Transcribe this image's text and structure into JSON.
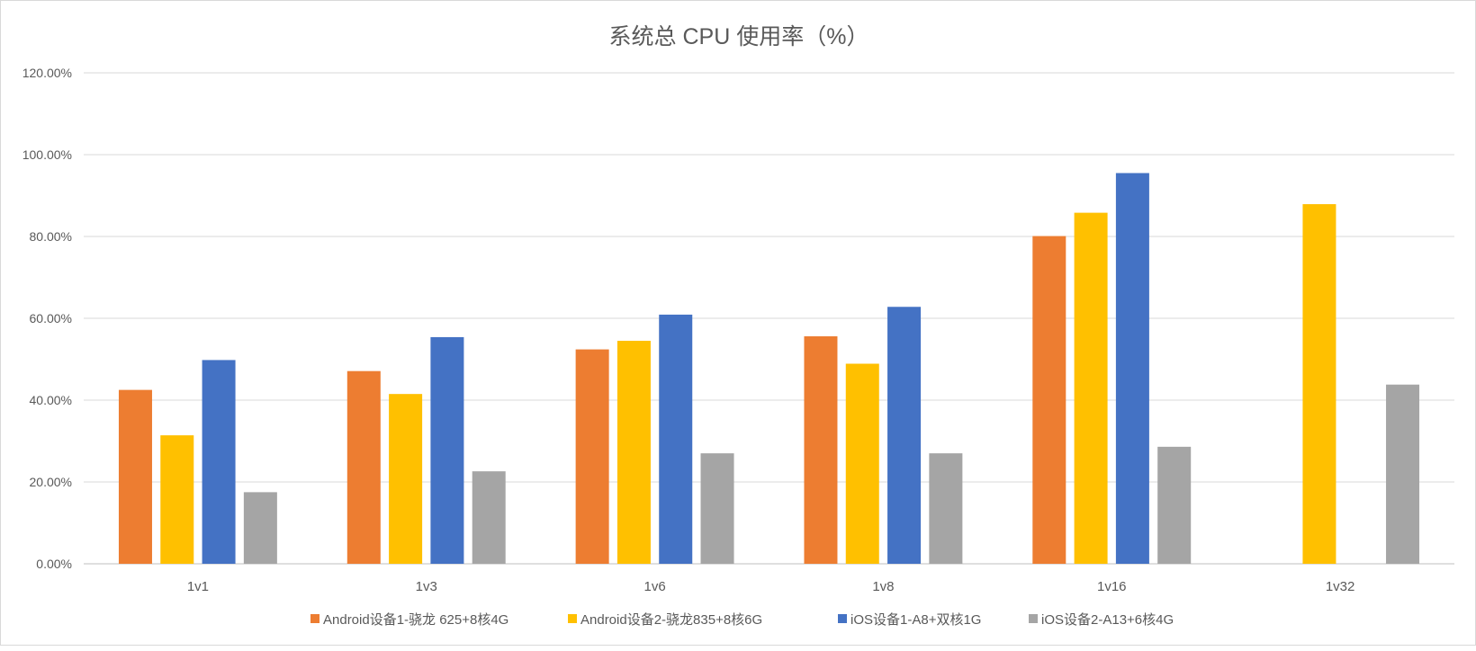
{
  "chart_data": {
    "type": "bar",
    "title": "系统总 CPU 使用率（%）",
    "xlabel": "",
    "ylabel": "",
    "ylim": [
      0,
      120
    ],
    "yticks": [
      0,
      20,
      40,
      60,
      80,
      100,
      120
    ],
    "ytick_labels": [
      "0.00%",
      "20.00%",
      "40.00%",
      "60.00%",
      "80.00%",
      "100.00%",
      "120.00%"
    ],
    "grid": true,
    "legend_position": "bottom",
    "categories": [
      "1v1",
      "1v3",
      "1v6",
      "1v8",
      "1v16",
      "1v32"
    ],
    "series": [
      {
        "name": "Android设备1-骁龙 625+8核4G",
        "color": "#ED7D31",
        "values": [
          42.5,
          47.1,
          52.4,
          55.6,
          80.1,
          null
        ]
      },
      {
        "name": "Android设备2-骁龙835+8核6G",
        "color": "#FFC000",
        "values": [
          31.4,
          41.5,
          54.5,
          48.9,
          85.8,
          87.9
        ]
      },
      {
        "name": "iOS设备1-A8+双核1G",
        "color": "#4472C4",
        "values": [
          49.8,
          55.4,
          60.9,
          62.8,
          95.5,
          null
        ]
      },
      {
        "name": "iOS设备2-A13+6核4G",
        "color": "#A5A5A5",
        "values": [
          17.5,
          22.6,
          27.0,
          27.0,
          28.6,
          43.8
        ]
      }
    ]
  }
}
